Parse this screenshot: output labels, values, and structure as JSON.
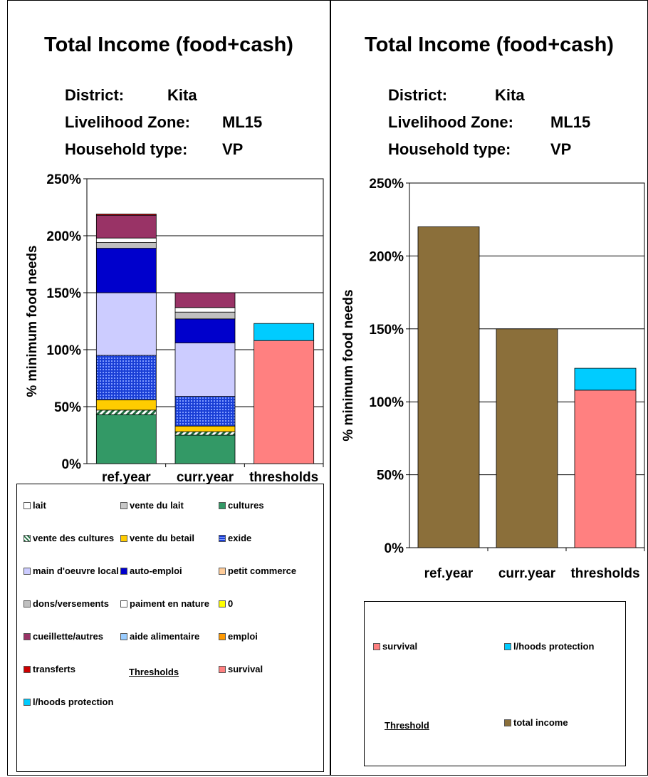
{
  "left": {
    "title": "Total Income (food+cash)",
    "info": [
      {
        "label": "District:",
        "value": "Kita"
      },
      {
        "label": "Livelihood Zone:",
        "value": "ML15"
      },
      {
        "label": "Household type:",
        "value": "VP"
      }
    ],
    "legend_heading": "Thresholds",
    "legend": [
      {
        "label": "lait",
        "color": "#ffffff"
      },
      {
        "label": "vente du lait",
        "color": "#c8c8c8"
      },
      {
        "label": "cultures",
        "color": "#339966"
      },
      {
        "label": "vente des cultures",
        "color": "#2e7d4f"
      },
      {
        "label": "vente du betail",
        "color": "#ffcc00"
      },
      {
        "label": "exide",
        "color": "#1a3fd6"
      },
      {
        "label": "main d'oeuvre local",
        "color": "#ccccff"
      },
      {
        "label": "auto-emploi",
        "color": "#0000cc"
      },
      {
        "label": "petit commerce",
        "color": "#ffcc99"
      },
      {
        "label": "dons/versements",
        "color": "#c0c0c0"
      },
      {
        "label": "paiment en nature",
        "color": "#ffffff"
      },
      {
        "label": "0",
        "color": "#ffff00"
      },
      {
        "label": "cueillette/autres",
        "color": "#993366"
      },
      {
        "label": "aide alimentaire",
        "color": "#99ccff"
      },
      {
        "label": "emploi",
        "color": "#ff9900"
      },
      {
        "label": "transferts",
        "color": "#cc0000"
      },
      {
        "label": "survival",
        "color": "#ff8080"
      },
      {
        "label": "l/hoods protection",
        "color": "#00ccff"
      }
    ]
  },
  "right": {
    "title": "Total Income (food+cash)",
    "info": [
      {
        "label": "District:",
        "value": "Kita"
      },
      {
        "label": "Livelihood Zone:",
        "value": "ML15"
      },
      {
        "label": "Household type:",
        "value": "VP"
      }
    ],
    "legend_heading": "Threshold",
    "legend": [
      {
        "label": "survival",
        "color": "#ff8080"
      },
      {
        "label": "l/hoods protection",
        "color": "#00ccff"
      },
      {
        "label": "total income",
        "color": "#8b6f3a"
      }
    ]
  },
  "chart_data": [
    {
      "type": "bar",
      "stacked": true,
      "ylabel": "% minimum food needs",
      "ylim": [
        0,
        250
      ],
      "yticks": [
        "0%",
        "50%",
        "100%",
        "150%",
        "200%",
        "250%"
      ],
      "categories": [
        "ref.year",
        "curr.year",
        "thresholds"
      ],
      "series": [
        {
          "name": "cultures",
          "color": "#339966",
          "values": [
            43,
            25,
            0
          ]
        },
        {
          "name": "vente des cultures",
          "color": "#2e7d4f",
          "pattern": "stripes",
          "values": [
            4,
            3,
            0
          ]
        },
        {
          "name": "vente du betail",
          "color": "#ffcc00",
          "values": [
            9,
            5,
            0
          ]
        },
        {
          "name": "exide",
          "color": "#1a3fd6",
          "pattern": "grid",
          "values": [
            39,
            26,
            0
          ]
        },
        {
          "name": "main d'oeuvre local",
          "color": "#ccccff",
          "values": [
            55,
            47,
            0
          ]
        },
        {
          "name": "auto-emploi",
          "color": "#0000cc",
          "values": [
            39,
            21,
            0
          ]
        },
        {
          "name": "dons/versements",
          "color": "#c0c0c0",
          "values": [
            5,
            6,
            0
          ]
        },
        {
          "name": "paiment en nature",
          "color": "#ffffff",
          "values": [
            4,
            4,
            0
          ]
        },
        {
          "name": "cueillette/autres",
          "color": "#993366",
          "values": [
            20,
            13,
            0
          ]
        },
        {
          "name": "transferts",
          "color": "#cc0000",
          "values": [
            1,
            0,
            0
          ]
        },
        {
          "name": "survival",
          "color": "#ff8080",
          "values": [
            0,
            0,
            108
          ]
        },
        {
          "name": "l/hoods protection",
          "color": "#00ccff",
          "values": [
            0,
            0,
            15
          ]
        }
      ]
    },
    {
      "type": "bar",
      "stacked": true,
      "ylabel": "% minimum food needs",
      "ylim": [
        0,
        250
      ],
      "yticks": [
        "0%",
        "50%",
        "100%",
        "150%",
        "200%",
        "250%"
      ],
      "categories": [
        "ref.year",
        "curr.year",
        "thresholds"
      ],
      "series": [
        {
          "name": "total income",
          "color": "#8b6f3a",
          "values": [
            220,
            150,
            0
          ]
        },
        {
          "name": "survival",
          "color": "#ff8080",
          "values": [
            0,
            0,
            108
          ]
        },
        {
          "name": "l/hoods protection",
          "color": "#00ccff",
          "values": [
            0,
            0,
            15
          ]
        }
      ]
    }
  ]
}
